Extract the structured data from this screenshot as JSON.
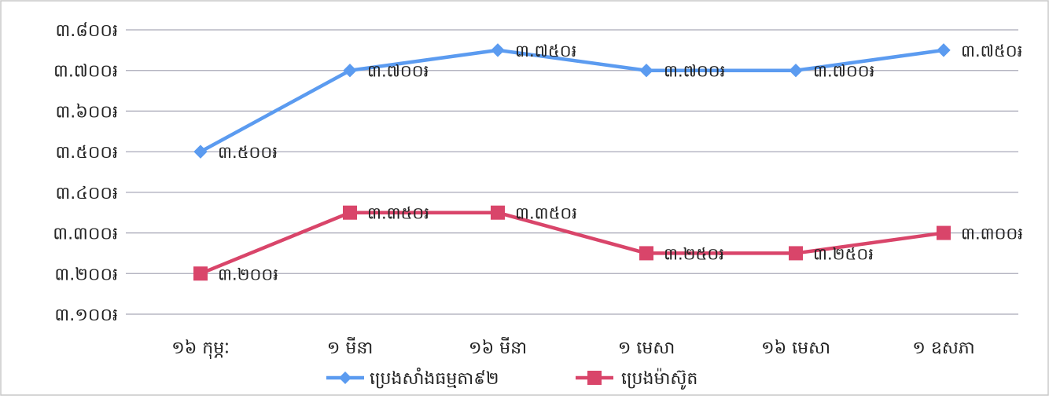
{
  "chart_data": {
    "type": "line",
    "title": "",
    "xlabel": "",
    "ylabel": "",
    "categories": [
      "១៦ កុម្ភៈ",
      "១ មីនា",
      "១៦ មីនា",
      "១ មេសា",
      "១៦ មេសា",
      "១ ឧសភា"
    ],
    "y_ticks": [
      3100,
      3200,
      3300,
      3400,
      3500,
      3600,
      3700,
      3800
    ],
    "y_tick_labels": [
      "៣.១០០៛",
      "៣.២០០៛",
      "៣.៣០០៛",
      "៣.៤០០៛",
      "៣.៥០០៛",
      "៣.៦០០៛",
      "៣.៧០០៛",
      "៣.៨០០៛"
    ],
    "ylim": [
      3100,
      3800
    ],
    "grid": true,
    "legend_position": "bottom",
    "series": [
      {
        "name": "ប្រេងសាំងធម្មតា៩២",
        "marker": "diamond",
        "color": "#5b9bf0",
        "values": [
          3500,
          3700,
          3750,
          3700,
          3700,
          3750
        ],
        "data_labels": [
          "៣.៥០០៛",
          "៣.៧០០៛",
          "៣.៧៥០៛",
          "៣.៧០០៛",
          "៣.៧០០៛",
          "៣.៧៥០៛"
        ]
      },
      {
        "name": "ប្រេងម៉ាស៊ូត",
        "marker": "square",
        "color": "#d9456a",
        "values": [
          3200,
          3350,
          3350,
          3250,
          3250,
          3300
        ],
        "data_labels": [
          "៣.២០០៛",
          "៣.៣៥០៛",
          "៣.៣៥០៛",
          "៣.២៥០៛",
          "៣.២៥០៛",
          "៣.៣០០៛"
        ]
      }
    ]
  }
}
